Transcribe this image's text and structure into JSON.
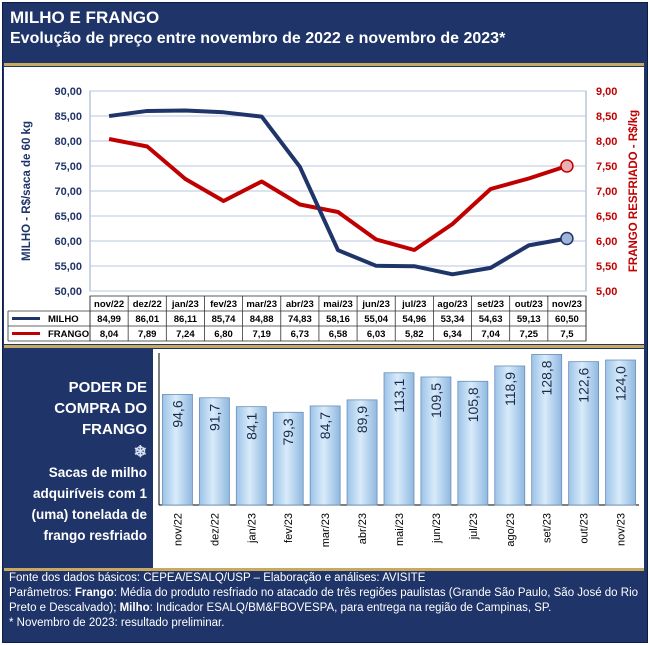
{
  "header": {
    "title": "MILHO E FRANGO",
    "subtitle": "Evolução de preço entre novembro de 2022 e novembro de 2023*"
  },
  "colors": {
    "navy": "#1f3468",
    "gold": "#c9a860",
    "milho": "#1f3468",
    "frango": "#c00000",
    "bar": "#b5d5f0"
  },
  "chart_data": [
    {
      "type": "line",
      "categories": [
        "nov/22",
        "dez/22",
        "jan/23",
        "fev/23",
        "mar/23",
        "abr/23",
        "mai/23",
        "jun/23",
        "jul/23",
        "ago/23",
        "set/23",
        "out/23",
        "nov/23"
      ],
      "series": [
        {
          "name": "MILHO",
          "axis": "left",
          "values": [
            84.99,
            86.01,
            86.11,
            85.74,
            84.88,
            74.83,
            58.16,
            55.04,
            54.96,
            53.34,
            54.63,
            59.13,
            60.5
          ],
          "labels": [
            "84,99",
            "86,01",
            "86,11",
            "85,74",
            "84,88",
            "74,83",
            "58,16",
            "55,04",
            "54,96",
            "53,34",
            "54,63",
            "59,13",
            "60,50"
          ]
        },
        {
          "name": "FRANGO",
          "axis": "right",
          "values": [
            8.04,
            7.89,
            7.24,
            6.8,
            7.19,
            6.73,
            6.58,
            6.03,
            5.82,
            6.34,
            7.04,
            7.25,
            7.5
          ],
          "labels": [
            "8,04",
            "7,89",
            "7,24",
            "6,80",
            "7,19",
            "6,73",
            "6,58",
            "6,03",
            "5,82",
            "6,34",
            "7,04",
            "7,25",
            "7,5"
          ]
        }
      ],
      "ylabel": "MILHO - R$/saca de 60 kg",
      "y2label": "FRANGO RESFRIADO - R$/kg",
      "ylim": [
        50,
        90
      ],
      "y2lim": [
        5,
        9
      ],
      "yticks": [
        "50,00",
        "55,00",
        "60,00",
        "65,00",
        "70,00",
        "75,00",
        "80,00",
        "85,00",
        "90,00"
      ],
      "y2ticks": [
        "5,00",
        "5,50",
        "6,00",
        "6,50",
        "7,00",
        "7,50",
        "8,00",
        "8,50",
        "9,00"
      ],
      "grid": true
    },
    {
      "type": "bar",
      "categories": [
        "nov/22",
        "dez/22",
        "jan/23",
        "fev/23",
        "mar/23",
        "abr/23",
        "mai/23",
        "jun/23",
        "jul/23",
        "ago/23",
        "set/23",
        "out/23",
        "nov/23"
      ],
      "values": [
        94.6,
        91.7,
        84.1,
        79.3,
        84.7,
        89.9,
        113.1,
        109.5,
        105.8,
        118.9,
        128.8,
        122.6,
        124.0
      ],
      "labels": [
        "94,6",
        "91,7",
        "84,1",
        "79,3",
        "84,7",
        "89,9",
        "113,1",
        "109,5",
        "105,8",
        "118,9",
        "128,8",
        "122,6",
        "124,0"
      ],
      "ylim": [
        0,
        130
      ]
    }
  ],
  "panel": {
    "title_lines": [
      "PODER DE",
      "COMPRA DO",
      "FRANGO"
    ],
    "icon": "snowflake-icon",
    "desc_lines": [
      "Sacas de milho",
      "adquiríveis com 1",
      "(uma) tonelada de",
      "frango resfriado"
    ]
  },
  "footer": {
    "line1": "Fonte dos dados básicos: CEPEA/ESALQ/USP – Elaboração e análises: AVISITE",
    "params_label": "Parâmetros: ",
    "frango_label": "Frango",
    "frango_text": ": Média do produto resfriado no atacado de três regiões paulistas (Grande São Paulo, São José do Rio Preto e Descalvado); ",
    "milho_label": "Milho",
    "milho_text": ": Indicador ESALQ/BM&FBOVESPA, para entrega na região de Campinas, SP.",
    "note": "* Novembro de 2023: resultado preliminar."
  }
}
